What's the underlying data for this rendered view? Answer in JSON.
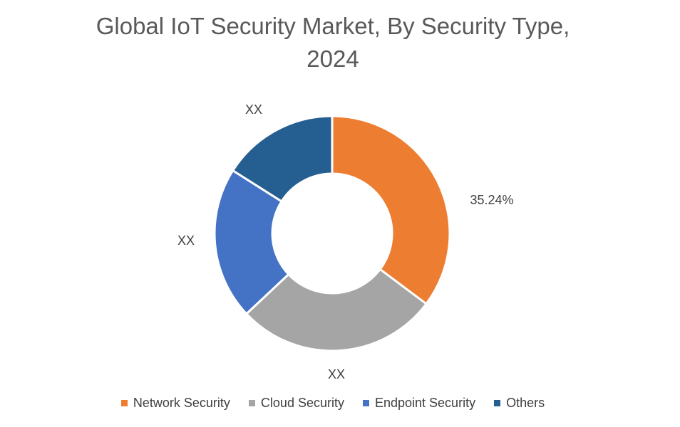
{
  "chart_data": {
    "type": "pie",
    "style": "donut",
    "title": "Global IoT Security Market, By Security Type, 2024",
    "title_lines": [
      "Global IoT Security Market, By Security Type,",
      "2024"
    ],
    "categories": [
      "Network Security",
      "Cloud Security",
      "Endpoint Security",
      "Others"
    ],
    "values": [
      35.24,
      27.76,
      21.0,
      16.0
    ],
    "data_labels": [
      "35.24%",
      "XX",
      "XX",
      "XX"
    ],
    "colors": [
      "#ED7D31",
      "#A5A5A5",
      "#4472C4",
      "#255E91"
    ],
    "legend": "bottom",
    "start_angle_deg": 0,
    "direction": "clockwise"
  }
}
